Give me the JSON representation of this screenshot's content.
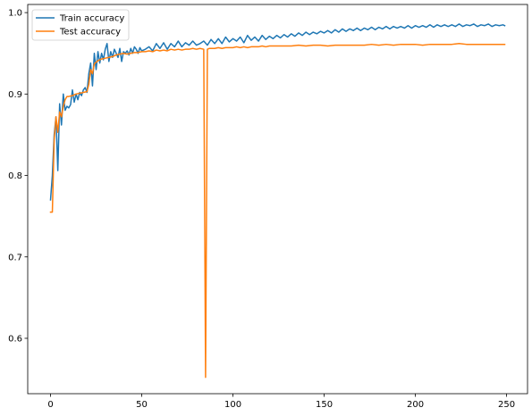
{
  "chart_data": {
    "type": "line",
    "title": "",
    "xlabel": "",
    "ylabel": "",
    "xlim": [
      -12.5,
      261.5
    ],
    "ylim": [
      0.532,
      1.01
    ],
    "x_ticks": [
      0,
      50,
      100,
      150,
      200,
      250
    ],
    "y_ticks": [
      0.6,
      0.7,
      0.8,
      0.9,
      1.0
    ],
    "x_tick_labels": [
      "0",
      "50",
      "100",
      "150",
      "200",
      "250"
    ],
    "y_tick_labels": [
      "0.6",
      "0.7",
      "0.8",
      "0.9",
      "1.0"
    ],
    "grid": false,
    "legend_position": "upper left",
    "series": [
      {
        "name": "Train accuracy",
        "color": "#1f77b4",
        "points": [
          [
            0,
            0.77
          ],
          [
            1,
            0.8
          ],
          [
            2,
            0.85
          ],
          [
            3,
            0.872
          ],
          [
            4,
            0.806
          ],
          [
            5,
            0.888
          ],
          [
            6,
            0.862
          ],
          [
            7,
            0.9
          ],
          [
            8,
            0.88
          ],
          [
            9,
            0.885
          ],
          [
            10,
            0.883
          ],
          [
            11,
            0.887
          ],
          [
            12,
            0.905
          ],
          [
            13,
            0.89
          ],
          [
            14,
            0.9
          ],
          [
            15,
            0.893
          ],
          [
            16,
            0.902
          ],
          [
            17,
            0.898
          ],
          [
            18,
            0.905
          ],
          [
            19,
            0.908
          ],
          [
            20,
            0.902
          ],
          [
            21,
            0.925
          ],
          [
            22,
            0.938
          ],
          [
            23,
            0.91
          ],
          [
            24,
            0.95
          ],
          [
            25,
            0.93
          ],
          [
            26,
            0.952
          ],
          [
            27,
            0.938
          ],
          [
            28,
            0.95
          ],
          [
            29,
            0.942
          ],
          [
            30,
            0.955
          ],
          [
            31,
            0.962
          ],
          [
            32,
            0.94
          ],
          [
            33,
            0.952
          ],
          [
            34,
            0.945
          ],
          [
            35,
            0.955
          ],
          [
            36,
            0.95
          ],
          [
            37,
            0.945
          ],
          [
            38,
            0.956
          ],
          [
            39,
            0.94
          ],
          [
            40,
            0.952
          ],
          [
            41,
            0.95
          ],
          [
            42,
            0.953
          ],
          [
            43,
            0.948
          ],
          [
            44,
            0.956
          ],
          [
            45,
            0.95
          ],
          [
            46,
            0.958
          ],
          [
            47,
            0.955
          ],
          [
            48,
            0.95
          ],
          [
            49,
            0.957
          ],
          [
            50,
            0.953
          ],
          [
            52,
            0.955
          ],
          [
            54,
            0.958
          ],
          [
            56,
            0.953
          ],
          [
            58,
            0.962
          ],
          [
            60,
            0.956
          ],
          [
            62,
            0.963
          ],
          [
            64,
            0.955
          ],
          [
            66,
            0.962
          ],
          [
            68,
            0.958
          ],
          [
            70,
            0.965
          ],
          [
            72,
            0.958
          ],
          [
            74,
            0.963
          ],
          [
            76,
            0.96
          ],
          [
            78,
            0.965
          ],
          [
            80,
            0.96
          ],
          [
            82,
            0.962
          ],
          [
            84,
            0.965
          ],
          [
            86,
            0.96
          ],
          [
            88,
            0.967
          ],
          [
            90,
            0.962
          ],
          [
            92,
            0.968
          ],
          [
            94,
            0.962
          ],
          [
            96,
            0.97
          ],
          [
            98,
            0.964
          ],
          [
            100,
            0.968
          ],
          [
            102,
            0.965
          ],
          [
            104,
            0.97
          ],
          [
            106,
            0.963
          ],
          [
            108,
            0.972
          ],
          [
            110,
            0.966
          ],
          [
            112,
            0.97
          ],
          [
            114,
            0.965
          ],
          [
            116,
            0.972
          ],
          [
            118,
            0.967
          ],
          [
            120,
            0.971
          ],
          [
            122,
            0.968
          ],
          [
            124,
            0.972
          ],
          [
            126,
            0.969
          ],
          [
            128,
            0.973
          ],
          [
            130,
            0.97
          ],
          [
            132,
            0.974
          ],
          [
            134,
            0.971
          ],
          [
            136,
            0.975
          ],
          [
            138,
            0.972
          ],
          [
            140,
            0.976
          ],
          [
            142,
            0.973
          ],
          [
            144,
            0.976
          ],
          [
            146,
            0.974
          ],
          [
            148,
            0.977
          ],
          [
            150,
            0.975
          ],
          [
            152,
            0.978
          ],
          [
            154,
            0.975
          ],
          [
            156,
            0.979
          ],
          [
            158,
            0.976
          ],
          [
            160,
            0.98
          ],
          [
            162,
            0.977
          ],
          [
            164,
            0.98
          ],
          [
            166,
            0.978
          ],
          [
            168,
            0.981
          ],
          [
            170,
            0.978
          ],
          [
            172,
            0.981
          ],
          [
            174,
            0.979
          ],
          [
            176,
            0.982
          ],
          [
            178,
            0.979
          ],
          [
            180,
            0.982
          ],
          [
            182,
            0.98
          ],
          [
            184,
            0.983
          ],
          [
            186,
            0.98
          ],
          [
            188,
            0.983
          ],
          [
            190,
            0.981
          ],
          [
            192,
            0.983
          ],
          [
            194,
            0.981
          ],
          [
            196,
            0.984
          ],
          [
            198,
            0.981
          ],
          [
            200,
            0.984
          ],
          [
            202,
            0.982
          ],
          [
            204,
            0.984
          ],
          [
            206,
            0.982
          ],
          [
            208,
            0.985
          ],
          [
            210,
            0.982
          ],
          [
            212,
            0.985
          ],
          [
            214,
            0.983
          ],
          [
            216,
            0.985
          ],
          [
            218,
            0.983
          ],
          [
            220,
            0.985
          ],
          [
            222,
            0.983
          ],
          [
            224,
            0.986
          ],
          [
            226,
            0.983
          ],
          [
            228,
            0.985
          ],
          [
            230,
            0.984
          ],
          [
            232,
            0.986
          ],
          [
            234,
            0.983
          ],
          [
            236,
            0.985
          ],
          [
            238,
            0.984
          ],
          [
            240,
            0.986
          ],
          [
            242,
            0.983
          ],
          [
            244,
            0.985
          ],
          [
            246,
            0.984
          ],
          [
            248,
            0.985
          ],
          [
            249,
            0.984
          ]
        ]
      },
      {
        "name": "Test accuracy",
        "color": "#ff7f0e",
        "points": [
          [
            0,
            0.755
          ],
          [
            1,
            0.755
          ],
          [
            2,
            0.843
          ],
          [
            3,
            0.872
          ],
          [
            4,
            0.853
          ],
          [
            5,
            0.878
          ],
          [
            6,
            0.872
          ],
          [
            7,
            0.885
          ],
          [
            8,
            0.893
          ],
          [
            9,
            0.897
          ],
          [
            10,
            0.897
          ],
          [
            12,
            0.898
          ],
          [
            14,
            0.9
          ],
          [
            16,
            0.901
          ],
          [
            18,
            0.902
          ],
          [
            20,
            0.903
          ],
          [
            21,
            0.912
          ],
          [
            22,
            0.93
          ],
          [
            23,
            0.925
          ],
          [
            24,
            0.937
          ],
          [
            26,
            0.941
          ],
          [
            28,
            0.943
          ],
          [
            30,
            0.944
          ],
          [
            32,
            0.945
          ],
          [
            34,
            0.946
          ],
          [
            36,
            0.948
          ],
          [
            38,
            0.949
          ],
          [
            40,
            0.95
          ],
          [
            42,
            0.949
          ],
          [
            44,
            0.95
          ],
          [
            46,
            0.951
          ],
          [
            48,
            0.951
          ],
          [
            50,
            0.952
          ],
          [
            52,
            0.952
          ],
          [
            54,
            0.953
          ],
          [
            56,
            0.952
          ],
          [
            58,
            0.954
          ],
          [
            60,
            0.953
          ],
          [
            62,
            0.954
          ],
          [
            64,
            0.953
          ],
          [
            66,
            0.955
          ],
          [
            68,
            0.954
          ],
          [
            70,
            0.955
          ],
          [
            72,
            0.954
          ],
          [
            74,
            0.955
          ],
          [
            76,
            0.955
          ],
          [
            78,
            0.956
          ],
          [
            80,
            0.955
          ],
          [
            82,
            0.956
          ],
          [
            84,
            0.955
          ],
          [
            85,
            0.552
          ],
          [
            86,
            0.955
          ],
          [
            87,
            0.956
          ],
          [
            88,
            0.956
          ],
          [
            90,
            0.956
          ],
          [
            92,
            0.957
          ],
          [
            94,
            0.956
          ],
          [
            96,
            0.957
          ],
          [
            98,
            0.957
          ],
          [
            100,
            0.957
          ],
          [
            102,
            0.958
          ],
          [
            104,
            0.957
          ],
          [
            106,
            0.958
          ],
          [
            108,
            0.957
          ],
          [
            110,
            0.958
          ],
          [
            112,
            0.958
          ],
          [
            114,
            0.958
          ],
          [
            116,
            0.959
          ],
          [
            118,
            0.958
          ],
          [
            120,
            0.959
          ],
          [
            124,
            0.959
          ],
          [
            128,
            0.959
          ],
          [
            132,
            0.959
          ],
          [
            136,
            0.96
          ],
          [
            140,
            0.959
          ],
          [
            144,
            0.96
          ],
          [
            148,
            0.96
          ],
          [
            152,
            0.959
          ],
          [
            156,
            0.96
          ],
          [
            160,
            0.96
          ],
          [
            164,
            0.96
          ],
          [
            168,
            0.96
          ],
          [
            172,
            0.96
          ],
          [
            176,
            0.961
          ],
          [
            180,
            0.96
          ],
          [
            184,
            0.961
          ],
          [
            188,
            0.96
          ],
          [
            192,
            0.961
          ],
          [
            196,
            0.961
          ],
          [
            200,
            0.961
          ],
          [
            204,
            0.96
          ],
          [
            208,
            0.961
          ],
          [
            212,
            0.961
          ],
          [
            216,
            0.961
          ],
          [
            220,
            0.961
          ],
          [
            224,
            0.962
          ],
          [
            228,
            0.961
          ],
          [
            232,
            0.961
          ],
          [
            236,
            0.961
          ],
          [
            240,
            0.961
          ],
          [
            244,
            0.961
          ],
          [
            248,
            0.961
          ],
          [
            249,
            0.961
          ]
        ]
      }
    ]
  }
}
